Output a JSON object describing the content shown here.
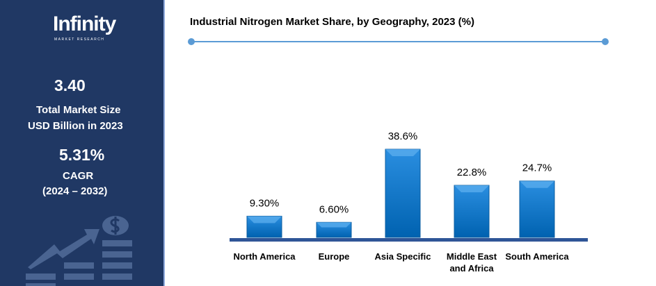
{
  "sidebar": {
    "logo_text": "Infinity",
    "logo_subtext": "MARKET RESEARCH",
    "market_size_value": "3.40",
    "market_size_label_1": "Total Market Size",
    "market_size_label_2": "USD Billion in 2023",
    "cagr_value": "5.31%",
    "cagr_label": "CAGR",
    "cagr_period": "(2024 – 2032)"
  },
  "chart_data": {
    "type": "bar",
    "title": "Industrial Nitrogen Market Share, by Geography, 2023 (%)",
    "categories": [
      "North America",
      "Europe",
      "Asia Specific",
      "Middle East and Africa",
      "South America"
    ],
    "values": [
      9.3,
      6.6,
      38.6,
      22.8,
      24.7
    ],
    "data_labels": [
      "9.30%",
      "6.60%",
      "38.6%",
      "22.8%",
      "24.7%"
    ],
    "ylim": [
      0,
      40
    ],
    "grid": false,
    "colors": {
      "bar": "#0070c0",
      "axis": "#2f5597",
      "accent": "#5b9bd5"
    }
  }
}
